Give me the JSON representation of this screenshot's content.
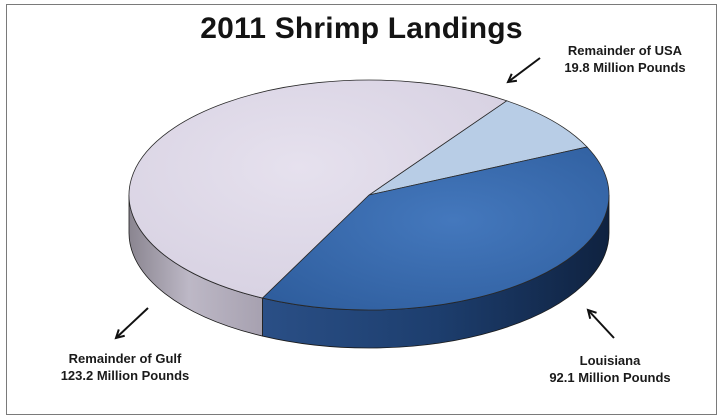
{
  "chart_data": {
    "type": "pie",
    "title": "2011 Shrimp Landings",
    "slices": [
      {
        "name": "Remainder of USA",
        "value_label": "19.8 Million Pounds",
        "value": 19.8,
        "color": "#b8cde6"
      },
      {
        "name": "Louisiana",
        "value_label": "92.1 Million Pounds",
        "value": 92.1,
        "color": "#3a6aad"
      },
      {
        "name": "Remainder of Gulf",
        "value_label": "123.2 Million Pounds",
        "value": 123.2,
        "color": "#dcd6e6"
      }
    ],
    "style": "3d-pie"
  }
}
